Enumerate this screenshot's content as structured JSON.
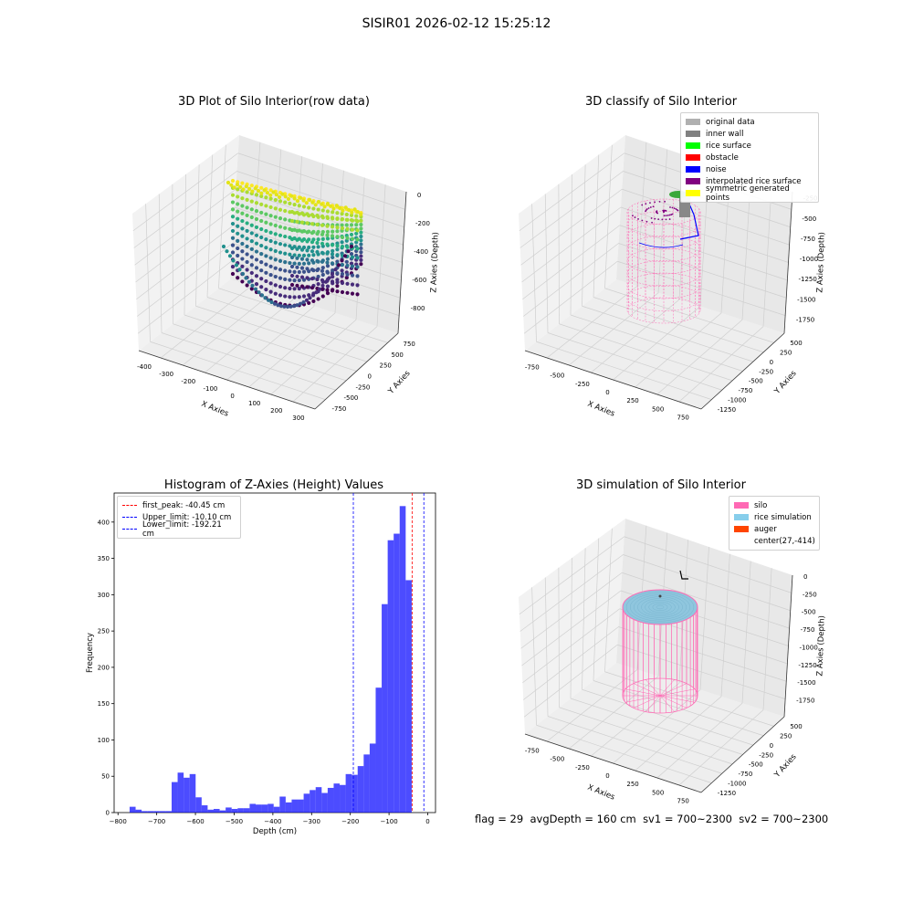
{
  "figure_title": "SISIR01 2026-02-12 15:25:12",
  "bottom_status": {
    "flag": "flag = 29",
    "avg_depth": "avgDepth = 160 cm",
    "sv1": "sv1 = 700~2300",
    "sv2": "sv2 = 700~2300"
  },
  "chart_data": [
    {
      "type": "scatter",
      "title": "3D Plot of Silo Interior(row data)",
      "xlabel": "X Axies",
      "ylabel": "Y Axies",
      "zlabel": "Z Axies (Depth)",
      "x_ticks": [
        "-400",
        "-300",
        "-200",
        "-100",
        "0",
        "100",
        "200",
        "300"
      ],
      "y_ticks": [
        "-750",
        "-500",
        "-250",
        "0",
        "250",
        "500",
        "750"
      ],
      "z_ticks": [
        "0",
        "-200",
        "-400",
        "-600",
        "-800"
      ],
      "xlim": [
        -450,
        300
      ],
      "ylim": [
        -850,
        850
      ],
      "zlim": [
        -900,
        0
      ],
      "colormap": "viridis"
    },
    {
      "type": "scatter",
      "title": "3D classify of Silo Interior",
      "xlabel": "X Axies",
      "ylabel": "Y Axies",
      "zlabel": "Z Axies (Depth)",
      "x_ticks": [
        "-750",
        "-500",
        "-250",
        "0",
        "250",
        "500",
        "750"
      ],
      "y_ticks": [
        "-1250",
        "-1000",
        "-750",
        "-500",
        "-250",
        "0",
        "250",
        "500"
      ],
      "z_ticks": [
        "-250",
        "-500",
        "-750",
        "-1000",
        "-1250",
        "-1500",
        "-1750"
      ],
      "legend_position": "top-right",
      "legend": [
        {
          "label": "original data",
          "color": "#b0b0b0"
        },
        {
          "label": "inner wall",
          "color": "#808080"
        },
        {
          "label": "rice surface",
          "color": "#00ff00"
        },
        {
          "label": "obstacle",
          "color": "#ff0000"
        },
        {
          "label": "noise",
          "color": "#0000ff"
        },
        {
          "label": "interpolated rice surface",
          "color": "#800080"
        },
        {
          "label": "symmetric generated points",
          "color": "#ffff00"
        }
      ]
    },
    {
      "type": "bar",
      "title": "Histogram of Z-Axies (Height) Values",
      "xlabel": "Depth (cm)",
      "ylabel": "Frequency",
      "xlim": [
        -810,
        20
      ],
      "ylim": [
        0,
        440
      ],
      "x_ticks": [
        -800,
        -700,
        -600,
        -500,
        -400,
        -300,
        -200,
        -100,
        0
      ],
      "y_ticks": [
        0,
        50,
        100,
        150,
        200,
        250,
        300,
        350,
        400
      ],
      "bar_color": "#0000ff",
      "bin_width": 15.5,
      "bins_start": -770,
      "values": [
        8,
        4,
        2,
        2,
        2,
        2,
        2,
        42,
        55,
        48,
        53,
        21,
        10,
        4,
        5,
        3,
        7,
        5,
        6,
        6,
        12,
        11,
        11,
        12,
        8,
        22,
        14,
        18,
        18,
        26,
        31,
        35,
        27,
        34,
        40,
        38,
        53,
        52,
        64,
        80,
        95,
        172,
        287,
        375,
        384,
        422,
        320
      ],
      "legend_position": "top-left",
      "lines": [
        {
          "label": "first_peak: -40.45 cm",
          "x": -40.45,
          "color": "#ff0000"
        },
        {
          "label": "Upper_limit: -10.10 cm",
          "x": -10.1,
          "color": "#0000ff"
        },
        {
          "label": "Lower_limit: -192.21 cm",
          "x": -192.21,
          "color": "#0000ff"
        }
      ]
    },
    {
      "type": "line",
      "title": "3D simulation of Silo Interior",
      "xlabel": "X Axies",
      "ylabel": "Y Axies",
      "zlabel": "Z Axies (Depth)",
      "x_ticks": [
        "-750",
        "-500",
        "-250",
        "0",
        "250",
        "500",
        "750"
      ],
      "y_ticks": [
        "-1250",
        "-1000",
        "-750",
        "-500",
        "-250",
        "0",
        "250",
        "500"
      ],
      "z_ticks": [
        "0",
        "-250",
        "-500",
        "-750",
        "-1000",
        "-1250",
        "-1500",
        "-1750"
      ],
      "legend_position": "top-right",
      "legend": [
        {
          "label": "silo",
          "color": "#ff69b4"
        },
        {
          "label": "rice simulation",
          "color": "#87ceeb"
        },
        {
          "label": "auger",
          "color": "#ff4500"
        },
        {
          "label": "center(27,-414)",
          "color": ""
        }
      ]
    }
  ]
}
